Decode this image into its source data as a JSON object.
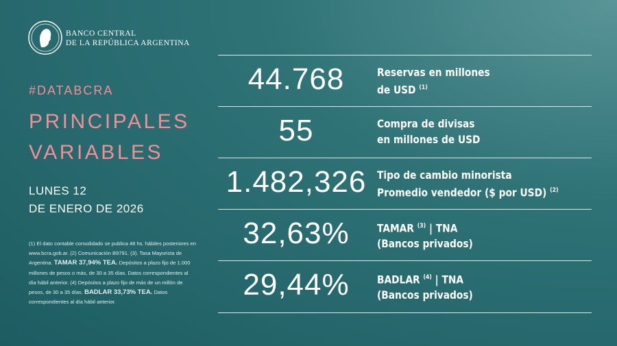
{
  "header": {
    "bank_line1": "BANCO CENTRAL",
    "bank_line2": "DE LA REPÚBLICA ARGENTINA"
  },
  "hashtag": "#DATABCRA",
  "title": {
    "line1": "PRINCIPALES",
    "line2": "VARIABLES"
  },
  "date": {
    "line1": "LUNES 12",
    "line2": "DE ENERO DE 2026"
  },
  "footnote": [
    {
      "text": "(1) El dato contable consolidado se publica 48 hs. hábiles posteriores en www.bcra.gob.ar. (2) Comunicación B9791. (3). Tasa Mayorista de Argentina."
    },
    {
      "bold": "TAMAR 37,94% TEA."
    },
    {
      "text": "Depósitos a plazo fijo de 1.000 millones de pesos o más, de 30 a 35 días. Datos correspondientes al día hábil anterior. (4) Depósitos a plazo fijo de más de un millón de pesos, de 30 a 35 días."
    },
    {
      "bold": "BADLAR 33,73% TEA."
    },
    {
      "text": "Datos correspondientes al día hábil anterior."
    }
  ],
  "rows": [
    {
      "value": "44.768",
      "lines": [
        {
          "text": "Reservas en millones"
        },
        {
          "text": "de USD",
          "note": "(1)"
        }
      ]
    },
    {
      "value": "55",
      "lines": [
        {
          "text": "Compra de divisas"
        },
        {
          "text": "en millones de USD"
        }
      ]
    },
    {
      "value": "1.482,326",
      "lines": [
        {
          "text": "Tipo de cambio minorista"
        },
        {
          "text": "Promedio vendedor ($ por USD)",
          "note": "(2)"
        }
      ]
    },
    {
      "value": "32,63%",
      "lines": [
        {
          "text": "TAMAR",
          "note": "(3)",
          "after": "| TNA"
        },
        {
          "text": "(Bancos privados)"
        }
      ]
    },
    {
      "value": "29,44%",
      "lines": [
        {
          "text": "BADLAR",
          "note": "(4)",
          "after": "| TNA"
        },
        {
          "text": "(Bancos privados)"
        }
      ]
    }
  ]
}
